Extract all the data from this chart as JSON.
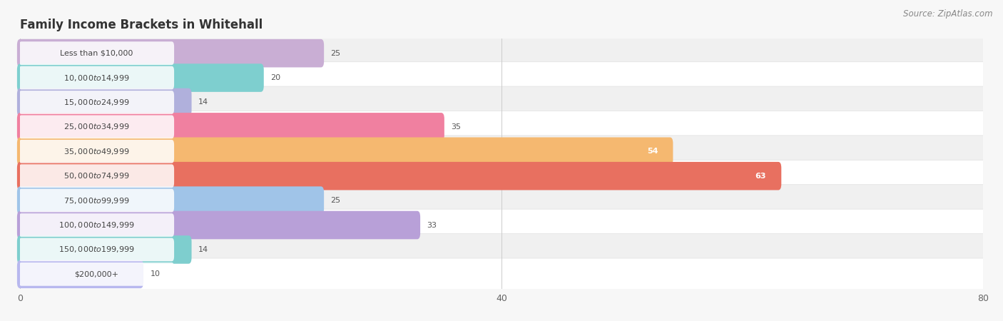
{
  "title": "Family Income Brackets in Whitehall",
  "source": "Source: ZipAtlas.com",
  "categories": [
    "Less than $10,000",
    "$10,000 to $14,999",
    "$15,000 to $24,999",
    "$25,000 to $34,999",
    "$35,000 to $49,999",
    "$50,000 to $74,999",
    "$75,000 to $99,999",
    "$100,000 to $149,999",
    "$150,000 to $199,999",
    "$200,000+"
  ],
  "values": [
    25,
    20,
    14,
    35,
    54,
    63,
    25,
    33,
    14,
    10
  ],
  "bar_colors": [
    "#c9aed4",
    "#7ecfcf",
    "#b0b0dc",
    "#f080a0",
    "#f5b870",
    "#e87060",
    "#a0c4e8",
    "#b8a0d8",
    "#7ecece",
    "#b8b8ee"
  ],
  "row_bg_colors": [
    "#f0f0f0",
    "#ffffff"
  ],
  "xlim": [
    0,
    80
  ],
  "xticks": [
    0,
    40,
    80
  ],
  "background_color": "#f7f7f7",
  "title_fontsize": 12,
  "source_fontsize": 8.5,
  "label_fontsize": 8,
  "value_fontsize": 8,
  "bar_height": 0.65
}
